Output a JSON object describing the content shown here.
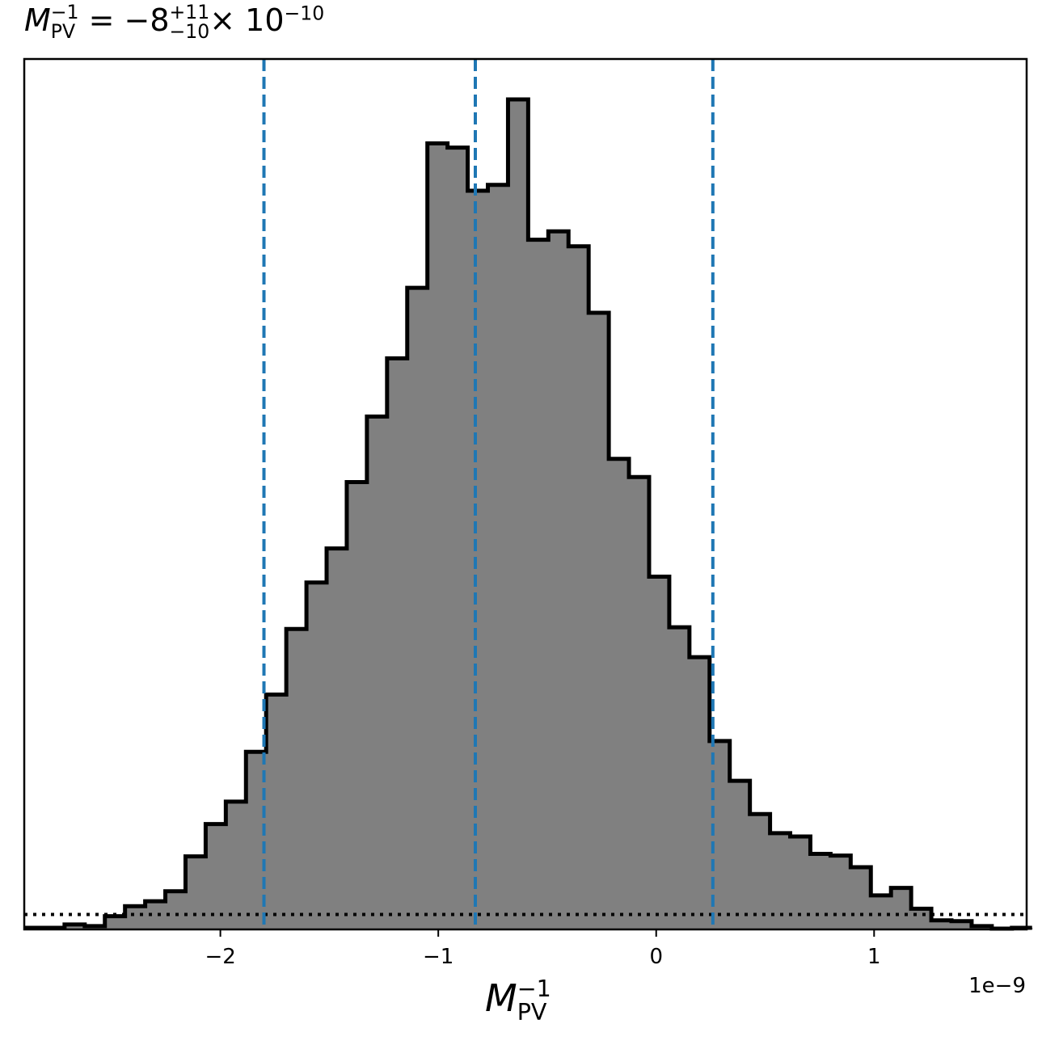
{
  "chart_data": {
    "type": "histogram",
    "title": {
      "symbol": "M",
      "sub": "PV",
      "sup": "−1",
      "eq": " = −8",
      "err_plus": "+11",
      "err_minus": "−10",
      "times": "× 10",
      "exp": "−10"
    },
    "xlabel": {
      "symbol": "M",
      "sub": "PV",
      "sup": "−1"
    },
    "offset_text": "1e−9",
    "xlim": [
      -2.9,
      1.7
    ],
    "ylim": [
      0,
      1.0
    ],
    "xticks": [
      -2,
      -1,
      0,
      1
    ],
    "xtick_labels": [
      "−2",
      "−1",
      "0",
      "1"
    ],
    "bin_width": 0.0925,
    "bin_start": -2.9,
    "counts": [
      0.002,
      0.002,
      0.006,
      0.004,
      0.016,
      0.028,
      0.034,
      0.046,
      0.088,
      0.127,
      0.154,
      0.214,
      0.283,
      0.362,
      0.418,
      0.459,
      0.539,
      0.618,
      0.688,
      0.773,
      0.947,
      0.942,
      0.89,
      0.897,
      1.0,
      0.831,
      0.841,
      0.823,
      0.743,
      0.567,
      0.545,
      0.425,
      0.364,
      0.328,
      0.227,
      0.179,
      0.139,
      0.116,
      0.112,
      0.091,
      0.089,
      0.075,
      0.041,
      0.05,
      0.025,
      0.011,
      0.01,
      0.004,
      0.001,
      0.002
    ],
    "vlines": [
      -1.8,
      -0.83,
      0.26
    ],
    "hline": 0.018,
    "fill_color": "#808080",
    "edge_color": "#000000",
    "vline_color": "#1f77b4"
  }
}
